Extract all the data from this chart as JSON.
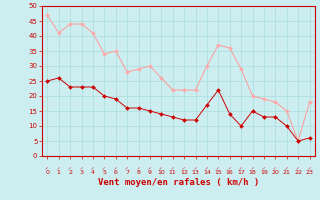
{
  "x": [
    0,
    1,
    2,
    3,
    4,
    5,
    6,
    7,
    8,
    9,
    10,
    11,
    12,
    13,
    14,
    15,
    16,
    17,
    18,
    19,
    20,
    21,
    22,
    23
  ],
  "vent_moyen": [
    25,
    26,
    23,
    23,
    23,
    20,
    19,
    16,
    16,
    15,
    14,
    13,
    12,
    12,
    17,
    22,
    14,
    10,
    15,
    13,
    13,
    10,
    5,
    6
  ],
  "rafales": [
    47,
    41,
    44,
    44,
    41,
    34,
    35,
    28,
    29,
    30,
    26,
    22,
    22,
    22,
    30,
    37,
    36,
    29,
    20,
    19,
    18,
    15,
    5,
    18
  ],
  "bg_color": "#cceef0",
  "grid_color": "#aadddd",
  "line_color_moyen": "#cc0000",
  "line_color_rafales": "#ff9999",
  "marker_color_moyen": "#cc0000",
  "marker_color_rafales": "#ffaaaa",
  "xlabel": "Vent moyen/en rafales ( km/h )",
  "xlabel_color": "#cc0000",
  "tick_color": "#cc0000",
  "axis_color": "#cc0000",
  "ylim": [
    0,
    50
  ],
  "yticks": [
    0,
    5,
    10,
    15,
    20,
    25,
    30,
    35,
    40,
    45,
    50
  ],
  "wind_arrow_color": "#cc0000"
}
